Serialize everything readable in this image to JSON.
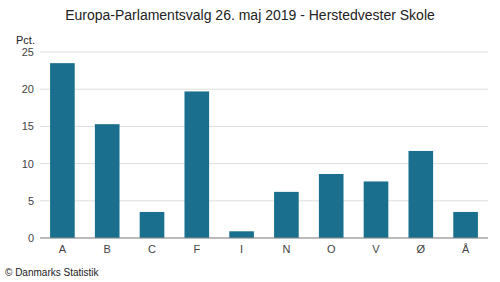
{
  "chart_data": {
    "type": "bar",
    "title": "Europa-Parlamentsvalg 26. maj 2019 - Herstedvester Skole",
    "ylabel": "Pct.",
    "categories": [
      "A",
      "B",
      "C",
      "F",
      "I",
      "N",
      "O",
      "V",
      "Ø",
      "Å"
    ],
    "values": [
      23.5,
      15.3,
      3.5,
      19.7,
      0.9,
      6.2,
      8.6,
      7.6,
      11.7,
      3.5
    ],
    "color": "#1a6e8e",
    "ylim": [
      0,
      25
    ],
    "yticks": [
      0,
      5,
      10,
      15,
      20,
      25
    ],
    "grid": true,
    "annotations": [
      "© Danmarks Statistik"
    ]
  }
}
